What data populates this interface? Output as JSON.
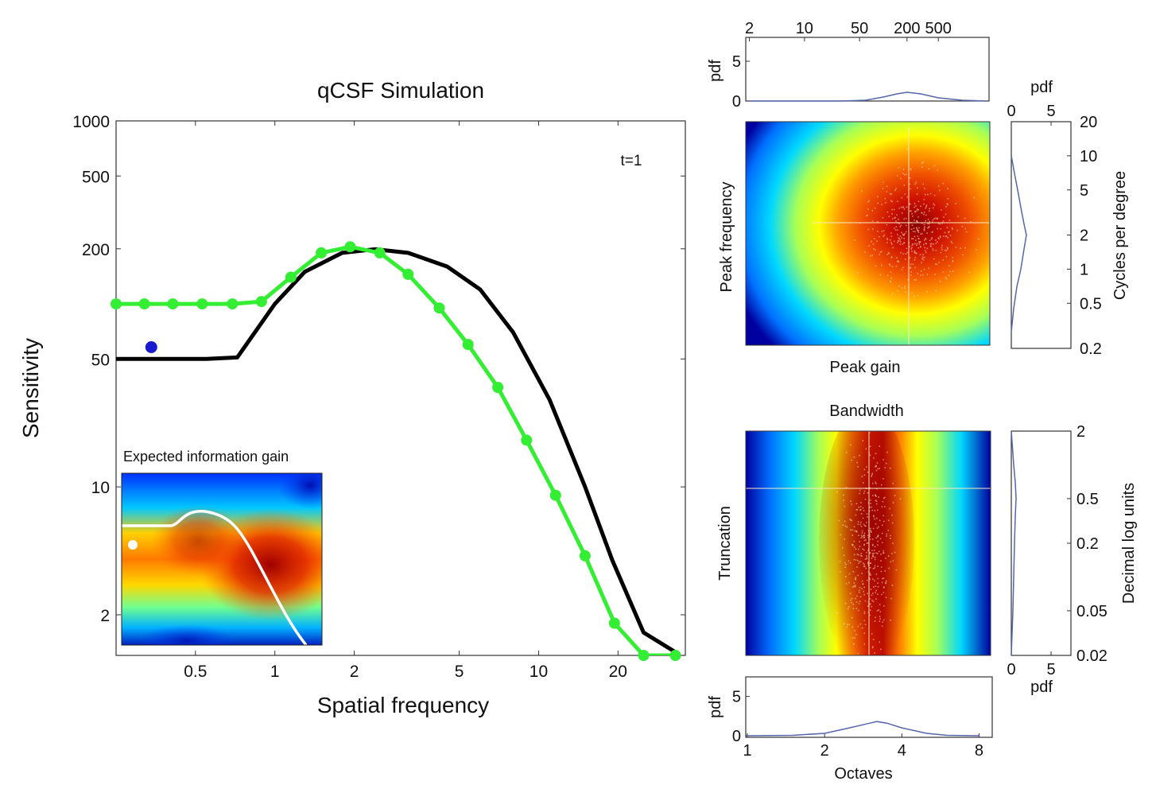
{
  "chart_data": [
    {
      "type": "line",
      "title": "qCSF Simulation",
      "xlabel": "Spatial frequency",
      "ylabel": "Sensitivity",
      "annotation": "t=1",
      "x_scale": "log",
      "y_scale": "log",
      "xlim": [
        0.25,
        36
      ],
      "ylim": [
        1.2,
        1000
      ],
      "xticks": [
        0.5,
        1,
        2,
        5,
        10,
        20
      ],
      "xtick_labels": [
        "0.5",
        "1",
        "2",
        "5",
        "10",
        "20"
      ],
      "yticks": [
        2,
        10,
        50,
        200,
        500,
        1000
      ],
      "ytick_labels": [
        "2",
        "10",
        "50",
        "200",
        "500",
        "1000"
      ],
      "series": [
        {
          "color": "#000000",
          "markers": false,
          "x": [
            0.25,
            0.55,
            0.72,
            1.0,
            1.3,
            1.8,
            2.4,
            3.2,
            4.5,
            6.0,
            8.0,
            11.0,
            15.0,
            19.0,
            25.0,
            33.0
          ],
          "y": [
            50,
            50,
            51,
            100,
            150,
            190,
            199,
            190,
            160,
            120,
            70,
            30,
            10,
            4.0,
            1.6,
            1.25
          ]
        },
        {
          "color": "#33ee33",
          "markers": true,
          "x": [
            0.25,
            0.32,
            0.41,
            0.53,
            0.69,
            0.89,
            1.15,
            1.5,
            1.93,
            2.5,
            3.2,
            4.2,
            5.4,
            7.0,
            9.0,
            11.6,
            15.0,
            19.4,
            25.0,
            33.0
          ],
          "y": [
            100,
            100,
            100,
            100,
            100,
            103,
            140,
            190,
            205,
            190,
            145,
            95,
            60,
            35,
            18,
            9,
            4.2,
            1.8,
            1.2,
            1.2
          ]
        },
        {
          "color": "#1a1ad0",
          "markers": true,
          "x": [
            0.34
          ],
          "y": [
            58
          ]
        }
      ]
    },
    {
      "type": "heatmap",
      "title": "Expected information gain"
    },
    {
      "type": "line",
      "ylabel": "pdf",
      "x_scale": "log",
      "xticks": [
        2,
        10,
        50,
        200,
        500
      ],
      "xtick_labels": [
        "2",
        "10",
        "50",
        "200",
        "500"
      ],
      "yticks": [
        0,
        5
      ],
      "ytick_labels": [
        "0",
        "5"
      ],
      "x": [
        2,
        10,
        30,
        60,
        100,
        150,
        200,
        300,
        500,
        1000,
        2000
      ],
      "y": [
        0,
        0,
        0,
        0.1,
        0.5,
        0.9,
        1.1,
        0.9,
        0.4,
        0.1,
        0
      ]
    },
    {
      "type": "heatmap",
      "xlabel": "Peak gain",
      "ylabel": "Peak frequency"
    },
    {
      "type": "line",
      "xlabel": "pdf",
      "ylabel": "Cycles per degree",
      "y_scale": "log",
      "xticks": [
        0,
        5
      ],
      "xtick_labels": [
        "0",
        "5"
      ],
      "yticks": [
        0.2,
        0.5,
        1,
        2,
        5,
        10,
        20
      ],
      "ytick_labels": [
        "0.2",
        "0.5",
        "1",
        "2",
        "5",
        "10",
        "20"
      ],
      "x": [
        0,
        0.4,
        0.8,
        1.2,
        1.6,
        1.9,
        1.6,
        1.2,
        0.7,
        0.3,
        0
      ],
      "y": [
        10,
        7,
        5,
        3.5,
        2.5,
        2,
        1.5,
        1,
        0.7,
        0.45,
        0.28
      ]
    },
    {
      "type": "heatmap",
      "title": "Bandwidth",
      "xlabel": "Octaves",
      "ylabel": "Truncation"
    },
    {
      "type": "line",
      "xlabel": "pdf",
      "ylabel": "Decimal log units",
      "y_scale": "log",
      "xticks": [
        0,
        5
      ],
      "xtick_labels": [
        "0",
        "5"
      ],
      "yticks": [
        0.02,
        0.05,
        0.2,
        0.5,
        2
      ],
      "ytick_labels": [
        "0.02",
        "0.05",
        "0.2",
        "0.5",
        "2"
      ],
      "x": [
        0,
        0.3,
        0.5,
        0.6,
        0.5,
        0.4,
        0.3,
        0.2,
        0
      ],
      "y": [
        2,
        1,
        0.7,
        0.5,
        0.35,
        0.2,
        0.1,
        0.05,
        0.02
      ]
    },
    {
      "type": "line",
      "ylabel": "pdf",
      "xlabel": "Octaves",
      "x_scale": "log",
      "xticks": [
        1,
        2,
        4,
        8
      ],
      "xtick_labels": [
        "1",
        "2",
        "4",
        "8"
      ],
      "yticks": [
        0,
        5
      ],
      "ytick_labels": [
        "0",
        "5"
      ],
      "x": [
        1,
        1.5,
        2,
        2.5,
        3,
        3.2,
        3.5,
        4,
        5,
        6,
        8
      ],
      "y": [
        0,
        0.05,
        0.3,
        1.0,
        1.6,
        1.8,
        1.6,
        1.0,
        0.3,
        0.05,
        0
      ]
    }
  ]
}
